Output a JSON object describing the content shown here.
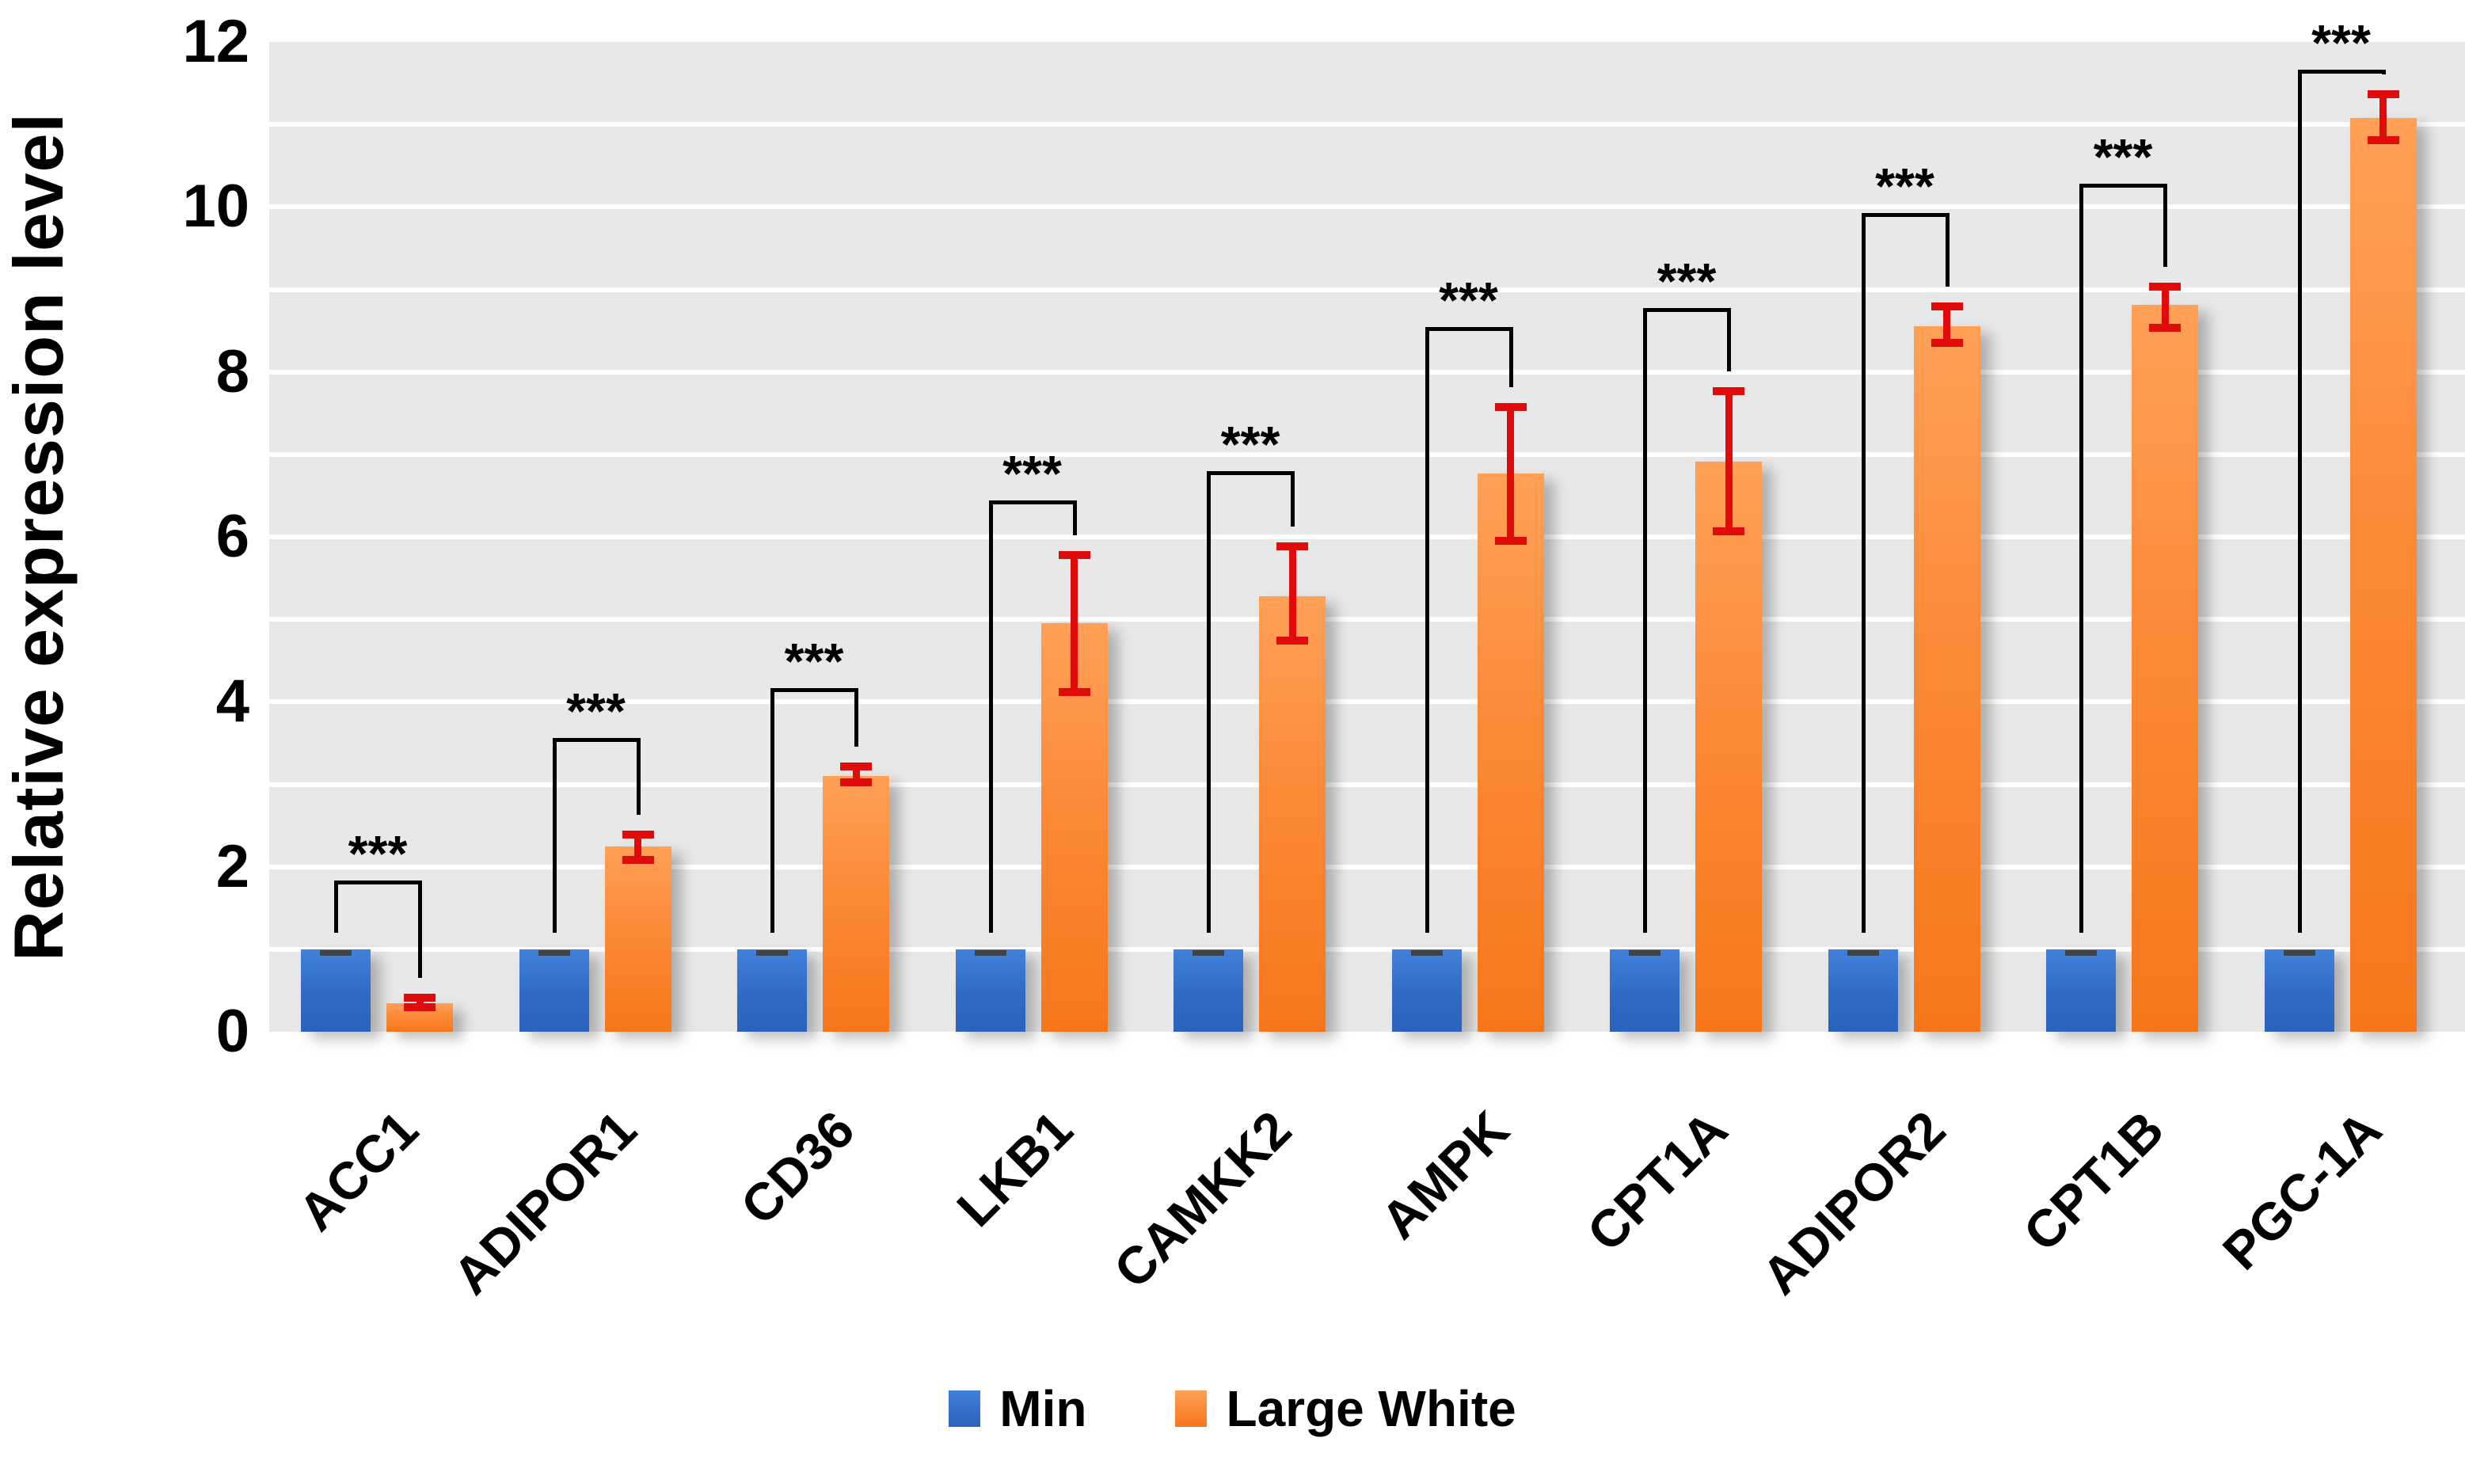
{
  "figure": {
    "y_axis_title": "Relative expression level",
    "plot_background": "#e8e8e8",
    "gridline_color": "#ffffff"
  },
  "chart_data": {
    "type": "bar",
    "title": "",
    "xlabel": "",
    "ylabel": "Relative expression level",
    "ylim": [
      0,
      12
    ],
    "ytick_step": 2,
    "yticks": [
      0,
      2,
      4,
      6,
      8,
      10,
      12
    ],
    "gridline_step": 1,
    "grid": true,
    "legend_position": "bottom",
    "categories": [
      "ACC1",
      "ADIPOR1",
      "CD36",
      "LKB1",
      "CAMKK2",
      "AMPK",
      "CPT1A",
      "ADIPOR2",
      "CPT1B",
      "PGC-1A"
    ],
    "series": [
      {
        "name": "Min",
        "color": "#2f6bc6",
        "error_color": "#3e4347",
        "values": [
          1,
          1,
          1,
          1,
          1,
          1,
          1,
          1,
          1,
          1
        ],
        "error_up": [
          0.04,
          0.04,
          0.04,
          0.04,
          0.04,
          0.04,
          0.04,
          0.04,
          0.04,
          0.04
        ],
        "error_down": [
          0.04,
          0.04,
          0.04,
          0.04,
          0.04,
          0.04,
          0.04,
          0.04,
          0.04,
          0.04
        ]
      },
      {
        "name": "Large White",
        "color": "#f9811f",
        "error_color": "#e00c0c",
        "values": [
          0.35,
          2.25,
          3.1,
          4.95,
          5.28,
          6.77,
          6.91,
          8.55,
          8.81,
          11.08
        ],
        "error_up": [
          0.11,
          0.19,
          0.16,
          0.88,
          0.65,
          0.85,
          0.9,
          0.29,
          0.27,
          0.33
        ],
        "error_down": [
          0.1,
          0.21,
          0.12,
          0.88,
          0.59,
          0.87,
          0.89,
          0.25,
          0.32,
          0.32
        ]
      }
    ],
    "significance": [
      {
        "category": "ACC1",
        "label": "***",
        "bracket_level": 1.83
      },
      {
        "category": "ADIPOR1",
        "label": "***",
        "bracket_level": 3.56
      },
      {
        "category": "CD36",
        "label": "***",
        "bracket_level": 4.17
      },
      {
        "category": "LKB1",
        "label": "***",
        "bracket_level": 6.44
      },
      {
        "category": "CAMKK2",
        "label": "***",
        "bracket_level": 6.8
      },
      {
        "category": "AMPK",
        "label": "***",
        "bracket_level": 8.54
      },
      {
        "category": "CPT1A",
        "label": "***",
        "bracket_level": 8.77
      },
      {
        "category": "ADIPOR2",
        "label": "***",
        "bracket_level": 9.93
      },
      {
        "category": "CPT1B",
        "label": "***",
        "bracket_level": 10.28
      },
      {
        "category": "PGC-1A",
        "label": "***",
        "bracket_level": 11.66
      }
    ]
  }
}
